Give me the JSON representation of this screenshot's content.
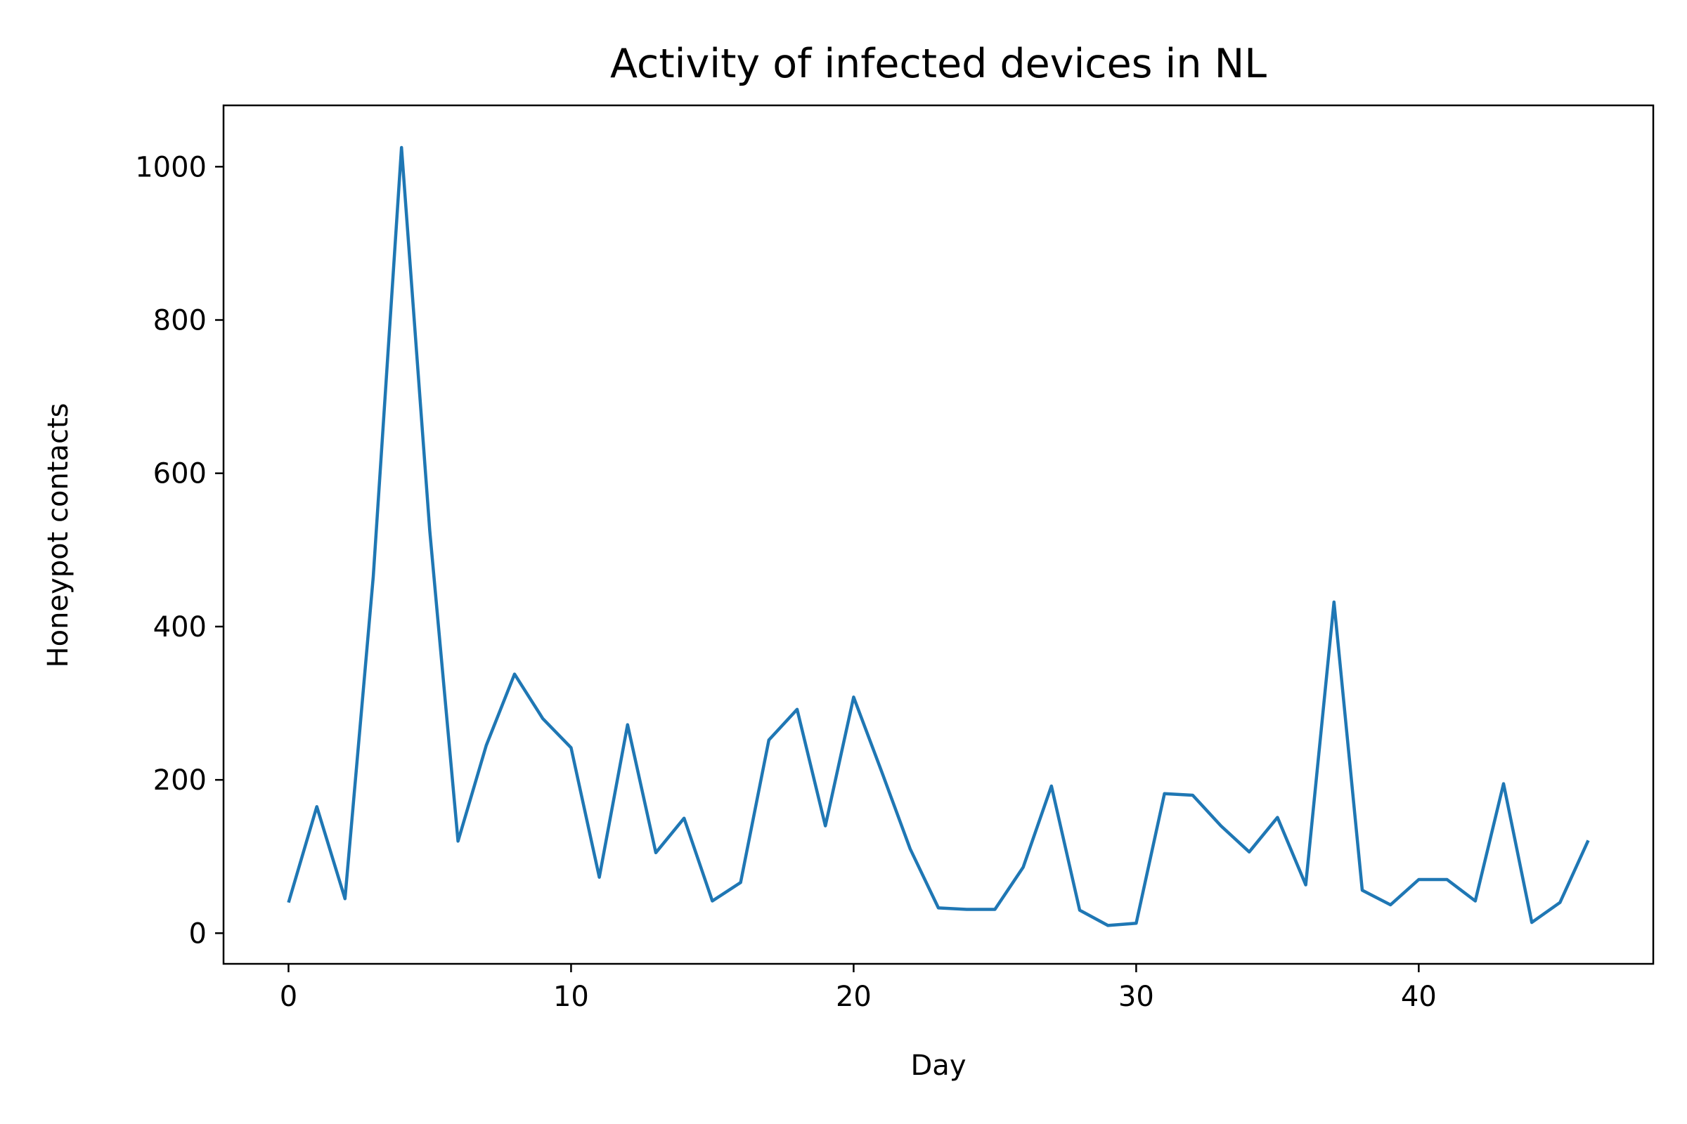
{
  "chart_data": {
    "type": "line",
    "title": "Activity of infected devices in NL",
    "xlabel": "Day",
    "ylabel": "Honeypot contacts",
    "xlim": [
      -2.3,
      48.3
    ],
    "ylim": [
      -40,
      1080
    ],
    "xticks": [
      0,
      10,
      20,
      30,
      40
    ],
    "yticks": [
      0,
      200,
      400,
      600,
      800,
      1000
    ],
    "grid": false,
    "color": "#1f77b4",
    "series": [
      {
        "x": [
          0,
          1,
          2,
          3,
          4,
          5,
          6,
          7,
          8,
          9,
          10,
          11,
          12,
          13,
          14,
          15,
          16,
          17,
          18,
          19,
          20,
          21,
          22,
          23,
          24,
          25,
          26,
          27,
          28,
          29,
          30,
          31,
          32,
          33,
          34,
          35,
          36,
          37,
          38,
          39,
          40,
          41,
          42,
          43,
          44,
          45,
          46
        ],
        "values": [
          40,
          165,
          45,
          465,
          1025,
          525,
          120,
          245,
          338,
          280,
          242,
          73,
          272,
          105,
          150,
          42,
          66,
          252,
          292,
          140,
          308,
          210,
          110,
          33,
          31,
          31,
          86,
          192,
          30,
          10,
          13,
          182,
          180,
          140,
          106,
          151,
          63,
          432,
          56,
          37,
          70,
          70,
          42,
          195,
          14,
          40,
          121
        ]
      }
    ]
  }
}
